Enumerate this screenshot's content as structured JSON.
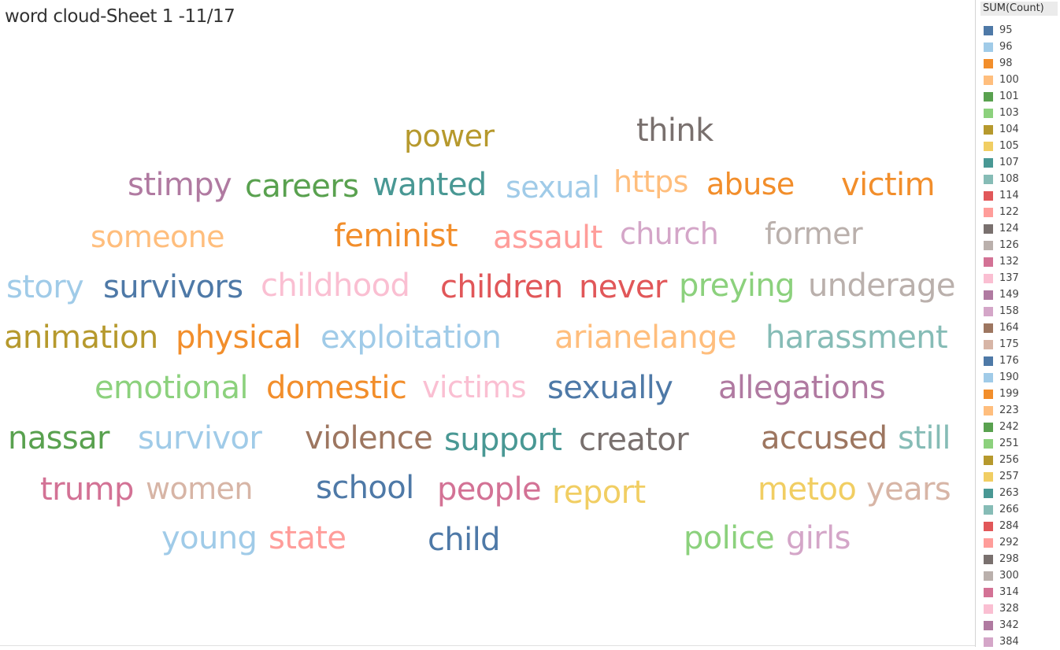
{
  "sheet_title": "word cloud-Sheet 1 -11/17",
  "chart_data": {
    "type": "word_cloud",
    "title": "word cloud-Sheet 1 -11/17",
    "legend_title": "SUM(Count)",
    "legend_position": "right",
    "legend": [
      {
        "value": "95",
        "color": "#4e79a7"
      },
      {
        "value": "96",
        "color": "#a0cbe8"
      },
      {
        "value": "98",
        "color": "#f28e2b"
      },
      {
        "value": "100",
        "color": "#ffbe7d"
      },
      {
        "value": "101",
        "color": "#59a14f"
      },
      {
        "value": "103",
        "color": "#8cd17d"
      },
      {
        "value": "104",
        "color": "#b6992d"
      },
      {
        "value": "105",
        "color": "#f1ce63"
      },
      {
        "value": "107",
        "color": "#499894"
      },
      {
        "value": "108",
        "color": "#86bcb6"
      },
      {
        "value": "114",
        "color": "#e15759"
      },
      {
        "value": "122",
        "color": "#ff9d9a"
      },
      {
        "value": "124",
        "color": "#79706e"
      },
      {
        "value": "126",
        "color": "#bab0ac"
      },
      {
        "value": "132",
        "color": "#d37295"
      },
      {
        "value": "137",
        "color": "#fabfd2"
      },
      {
        "value": "149",
        "color": "#b07aa1"
      },
      {
        "value": "158",
        "color": "#d4a6c8"
      },
      {
        "value": "164",
        "color": "#9d7660"
      },
      {
        "value": "175",
        "color": "#d7b5a6"
      },
      {
        "value": "176",
        "color": "#4e79a7"
      },
      {
        "value": "190",
        "color": "#a0cbe8"
      },
      {
        "value": "199",
        "color": "#f28e2b"
      },
      {
        "value": "223",
        "color": "#ffbe7d"
      },
      {
        "value": "242",
        "color": "#59a14f"
      },
      {
        "value": "251",
        "color": "#8cd17d"
      },
      {
        "value": "256",
        "color": "#b6992d"
      },
      {
        "value": "257",
        "color": "#f1ce63"
      },
      {
        "value": "263",
        "color": "#499894"
      },
      {
        "value": "266",
        "color": "#86bcb6"
      },
      {
        "value": "284",
        "color": "#e15759"
      },
      {
        "value": "292",
        "color": "#ff9d9a"
      },
      {
        "value": "298",
        "color": "#79706e"
      },
      {
        "value": "300",
        "color": "#bab0ac"
      },
      {
        "value": "314",
        "color": "#d37295"
      },
      {
        "value": "328",
        "color": "#fabfd2"
      },
      {
        "value": "342",
        "color": "#b07aa1"
      },
      {
        "value": "384",
        "color": "#d4a6c8"
      }
    ],
    "words": [
      {
        "text": "power",
        "color": "#b6992d"
      },
      {
        "text": "think",
        "color": "#79706e"
      },
      {
        "text": "stimpy",
        "color": "#b07aa1"
      },
      {
        "text": "careers",
        "color": "#59a14f"
      },
      {
        "text": "wanted",
        "color": "#499894"
      },
      {
        "text": "sexual",
        "color": "#a0cbe8"
      },
      {
        "text": "https",
        "color": "#ffbe7d"
      },
      {
        "text": "abuse",
        "color": "#f28e2b"
      },
      {
        "text": "victim",
        "color": "#f28e2b"
      },
      {
        "text": "someone",
        "color": "#ffbe7d"
      },
      {
        "text": "feminist",
        "color": "#f28e2b"
      },
      {
        "text": "assault",
        "color": "#ff9d9a"
      },
      {
        "text": "church",
        "color": "#d4a6c8"
      },
      {
        "text": "former",
        "color": "#bab0ac"
      },
      {
        "text": "story",
        "color": "#a0cbe8"
      },
      {
        "text": "survivors",
        "color": "#4e79a7"
      },
      {
        "text": "childhood",
        "color": "#fabfd2"
      },
      {
        "text": "children",
        "color": "#e15759"
      },
      {
        "text": "never",
        "color": "#e15759"
      },
      {
        "text": "preying",
        "color": "#8cd17d"
      },
      {
        "text": "underage",
        "color": "#bab0ac"
      },
      {
        "text": "animation",
        "color": "#b6992d"
      },
      {
        "text": "physical",
        "color": "#f28e2b"
      },
      {
        "text": "exploitation",
        "color": "#a0cbe8"
      },
      {
        "text": "arianelange",
        "color": "#ffbe7d"
      },
      {
        "text": "harassment",
        "color": "#86bcb6"
      },
      {
        "text": "emotional",
        "color": "#8cd17d"
      },
      {
        "text": "domestic",
        "color": "#f28e2b"
      },
      {
        "text": "victims",
        "color": "#fabfd2"
      },
      {
        "text": "sexually",
        "color": "#4e79a7"
      },
      {
        "text": "allegations",
        "color": "#b07aa1"
      },
      {
        "text": "nassar",
        "color": "#59a14f"
      },
      {
        "text": "survivor",
        "color": "#a0cbe8"
      },
      {
        "text": "violence",
        "color": "#9d7660"
      },
      {
        "text": "support",
        "color": "#499894"
      },
      {
        "text": "creator",
        "color": "#79706e"
      },
      {
        "text": "accused",
        "color": "#9d7660"
      },
      {
        "text": "still",
        "color": "#86bcb6"
      },
      {
        "text": "trump",
        "color": "#d37295"
      },
      {
        "text": "women",
        "color": "#d7b5a6"
      },
      {
        "text": "school",
        "color": "#4e79a7"
      },
      {
        "text": "people",
        "color": "#d37295"
      },
      {
        "text": "report",
        "color": "#f1ce63"
      },
      {
        "text": "metoo",
        "color": "#f1ce63"
      },
      {
        "text": "years",
        "color": "#d7b5a6"
      },
      {
        "text": "young",
        "color": "#a0cbe8"
      },
      {
        "text": "state",
        "color": "#ff9d9a"
      },
      {
        "text": "child",
        "color": "#4e79a7"
      },
      {
        "text": "police",
        "color": "#8cd17d"
      },
      {
        "text": "girls",
        "color": "#d4a6c8"
      }
    ]
  }
}
